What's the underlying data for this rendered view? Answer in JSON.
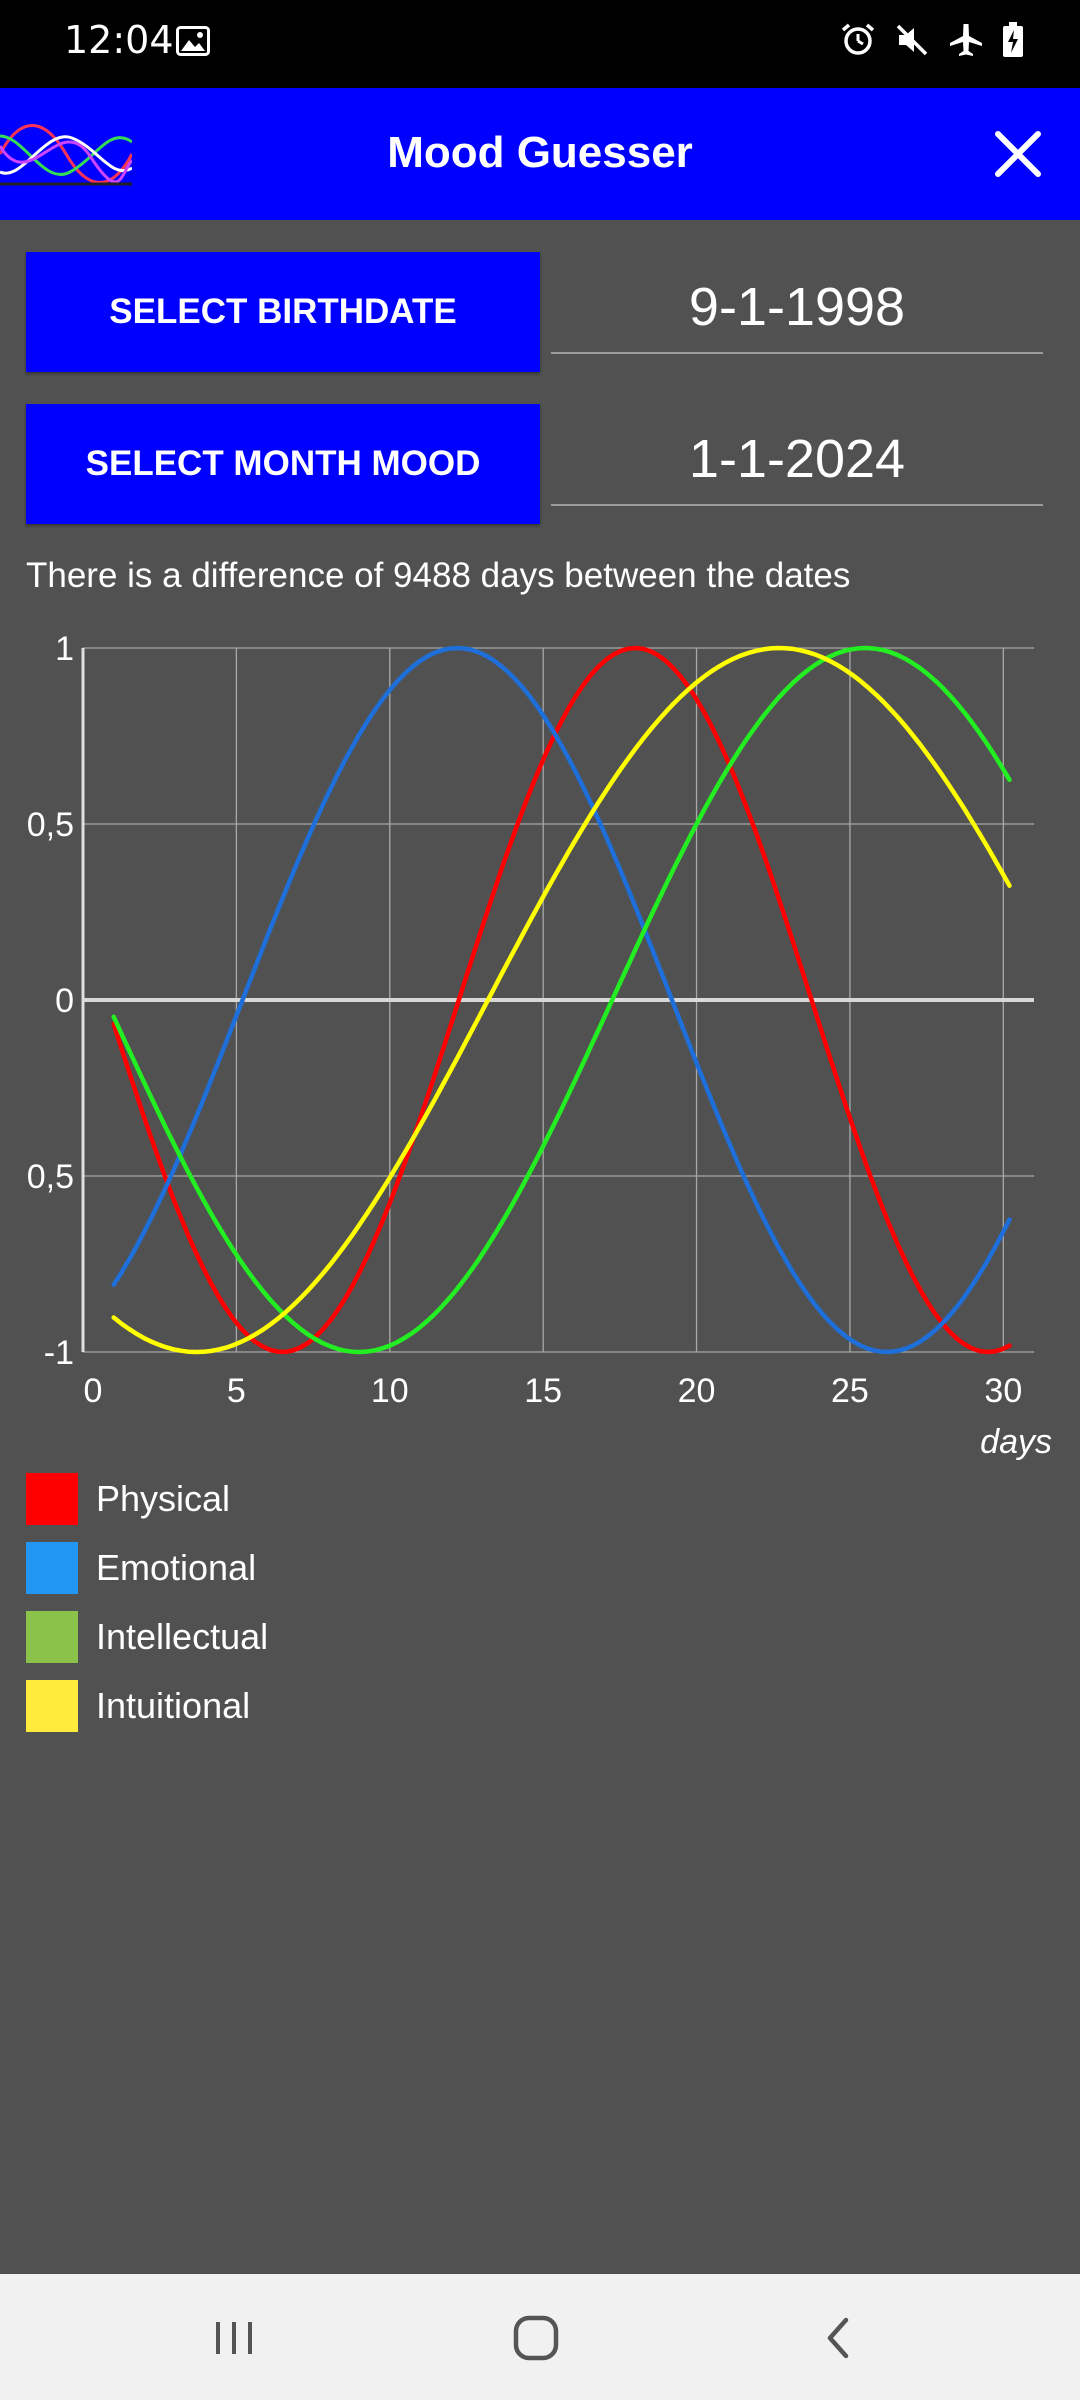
{
  "status_bar": {
    "time": "12:04",
    "icons": [
      "image-icon",
      "alarm-icon",
      "mute-icon",
      "airplane-mode-icon",
      "battery-charging-icon"
    ]
  },
  "app_bar": {
    "title": "Mood Guesser",
    "logo": "biorhythm-logo",
    "close_icon": "close-icon"
  },
  "birthdate": {
    "button_label": "SELECT BIRTHDATE",
    "value": "9-1-1998"
  },
  "month": {
    "button_label": "SELECT MONTH MOOD",
    "value": "1-1-2024"
  },
  "difference_text": "There is a difference of 9488 days between the dates",
  "chart_data": {
    "type": "line",
    "title": "",
    "xlabel": "days",
    "ylabel": "",
    "xlim": [
      0,
      31
    ],
    "ylim": [
      -1,
      1
    ],
    "x_ticks": [
      "0",
      "5",
      "10",
      "15",
      "20",
      "25",
      "30"
    ],
    "y_ticks": [
      "1",
      "0,5",
      "0",
      "0,5",
      "-1"
    ],
    "grid": true,
    "series": [
      {
        "name": "Physical",
        "color": "#ff0000",
        "period": 23,
        "peak_day": 18.0
      },
      {
        "name": "Emotional",
        "color": "#1e6fd9",
        "period": 28,
        "peak_day": 12.2
      },
      {
        "name": "Intellectual",
        "color": "#22ee22",
        "period": 33,
        "peak_day": 25.5
      },
      {
        "name": "Intuitional",
        "color": "#ffff00",
        "period": 38,
        "peak_day": 22.7
      }
    ],
    "x_start": 1,
    "x_end": 30.2
  },
  "legend": [
    {
      "label": "Physical",
      "color": "#ff0000"
    },
    {
      "label": "Emotional",
      "color": "#2196f3"
    },
    {
      "label": "Intellectual",
      "color": "#8bc34a"
    },
    {
      "label": "Intuitional",
      "color": "#ffeb3b"
    }
  ],
  "nav_bar": {
    "recent_icon": "recent-apps-icon",
    "home_icon": "home-icon",
    "back_icon": "back-icon"
  }
}
